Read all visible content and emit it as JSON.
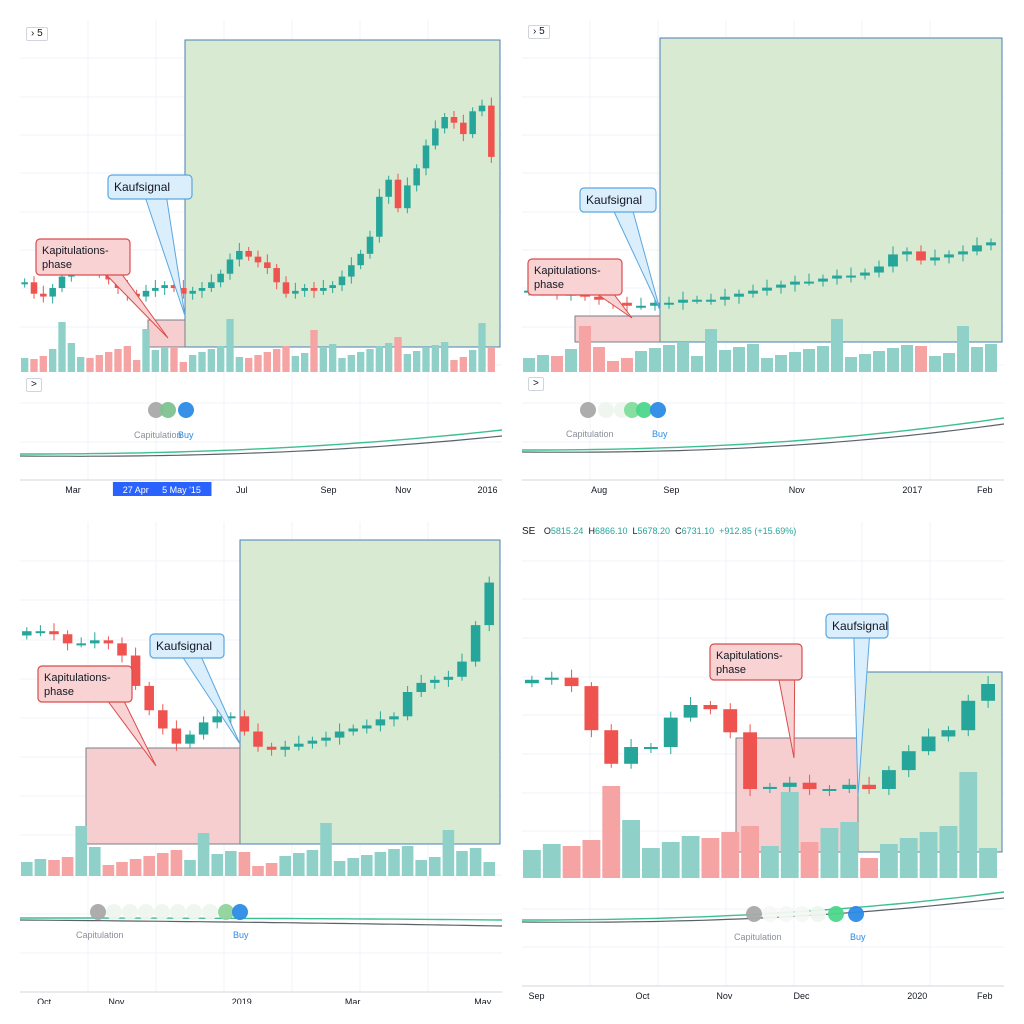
{
  "colors": {
    "up": "#26a69a",
    "down": "#ef5350",
    "vol_up": "#8fd1c8",
    "vol_down": "#f5a3a3",
    "buy_zone": "#d8ebd2",
    "buy_zone_border": "#4a7fb5",
    "cap_zone": "#f4c6c8",
    "cap_zone_border": "#7a7f8a",
    "callout_blue_bg": "#dbeefc",
    "callout_blue_border": "#5aa7e0",
    "callout_red_bg": "#f9d3d3",
    "callout_red_border": "#d94c4c",
    "grid": "#f0f3fa",
    "indicator_line": "#3dbf8f",
    "indicator_line2": "#5a6269",
    "buy_dot": "#2b8be6",
    "cap_dot": "#a9a9a9",
    "mid_dot": "#4cd68a",
    "text_axis": "#131722",
    "text_legend": "#8a8f9b"
  },
  "labels": {
    "kaufsignal": "Kaufsignal",
    "kapitulation_1": "Kapitulations-",
    "kapitulation_2": "phase",
    "capitulation": "Capitulation",
    "buy": "Buy"
  },
  "panels": [
    {
      "id": "tl",
      "badge": "5",
      "collapse_badge": ">",
      "x_ticks": [
        "Mar",
        "27 Apr '15",
        "5 May '15",
        "Jul",
        "Sep",
        "Nov",
        "2016"
      ],
      "x_tick_pos": [
        0.11,
        0.255,
        0.335,
        0.46,
        0.64,
        0.795,
        0.97
      ],
      "highlight_ticks": [
        1,
        2
      ],
      "show_cap_label": true,
      "show_buy_label": true
    },
    {
      "id": "tr",
      "badge": "5",
      "collapse_badge": ">",
      "x_ticks": [
        "Aug",
        "Sep",
        "Nov",
        "2017",
        "Feb"
      ],
      "x_tick_pos": [
        0.16,
        0.31,
        0.57,
        0.81,
        0.96
      ],
      "highlight_ticks": [],
      "show_cap_label": true,
      "show_buy_label": true
    },
    {
      "id": "bl",
      "x_ticks": [
        "Oct",
        "Nov",
        "2019",
        "Mar",
        "May"
      ],
      "x_tick_pos": [
        0.05,
        0.2,
        0.46,
        0.69,
        0.96
      ],
      "highlight_ticks": [],
      "show_cap_label": true,
      "show_buy_label": true
    },
    {
      "id": "br",
      "ohlc": {
        "symbol": "SE",
        "o_label": "O",
        "o": "5815.24",
        "h_label": "H",
        "h": "6866.10",
        "l_label": "L",
        "l": "5678.20",
        "c_label": "C",
        "c": "6731.10",
        "change": "+912.85 (+15.69%)"
      },
      "x_ticks": [
        "Sep",
        "Oct",
        "Nov",
        "Dec",
        "2020",
        "Feb"
      ],
      "x_tick_pos": [
        0.03,
        0.25,
        0.42,
        0.58,
        0.82,
        0.96
      ],
      "highlight_ticks": [],
      "show_cap_label": true,
      "show_buy_label": true
    }
  ],
  "chart_data": [
    {
      "type": "candlestick",
      "panel": "tl",
      "x_labels": [
        "Mar",
        "27 Apr '15",
        "5 May '15",
        "Jul",
        "Sep",
        "Nov",
        "2016"
      ],
      "series": [
        {
          "name": "price",
          "values": [
            0.22,
            0.18,
            0.17,
            0.2,
            0.24,
            0.27,
            0.3,
            0.28,
            0.25,
            0.23,
            0.2,
            0.18,
            0.17,
            0.19,
            0.2,
            0.21,
            0.2,
            0.18,
            0.19,
            0.2,
            0.22,
            0.25,
            0.3,
            0.33,
            0.31,
            0.29,
            0.27,
            0.22,
            0.18,
            0.19,
            0.2,
            0.19,
            0.2,
            0.21,
            0.24,
            0.28,
            0.32,
            0.38,
            0.52,
            0.58,
            0.48,
            0.56,
            0.62,
            0.7,
            0.76,
            0.8,
            0.78,
            0.74,
            0.82,
            0.84,
            0.66
          ]
        }
      ],
      "annotations": [
        "Kapitulations-phase",
        "Kaufsignal"
      ],
      "indicator_points": [
        "Capitulation",
        "Buy"
      ]
    },
    {
      "type": "candlestick",
      "panel": "tr",
      "x_labels": [
        "Aug",
        "Sep",
        "Nov",
        "2017",
        "Feb"
      ],
      "series": [
        {
          "name": "price",
          "values": [
            0.17,
            0.17,
            0.16,
            0.16,
            0.15,
            0.14,
            0.13,
            0.12,
            0.12,
            0.13,
            0.13,
            0.14,
            0.14,
            0.14,
            0.15,
            0.16,
            0.17,
            0.18,
            0.19,
            0.2,
            0.2,
            0.21,
            0.22,
            0.22,
            0.23,
            0.25,
            0.29,
            0.3,
            0.27,
            0.28,
            0.29,
            0.3,
            0.32,
            0.33
          ]
        }
      ],
      "annotations": [
        "Kapitulations-phase",
        "Kaufsignal"
      ],
      "indicator_points": [
        "Capitulation",
        "Buy"
      ]
    },
    {
      "type": "candlestick",
      "panel": "bl",
      "x_labels": [
        "Oct",
        "Nov",
        "2019",
        "Mar",
        "May"
      ],
      "series": [
        {
          "name": "price",
          "values": [
            0.7,
            0.7,
            0.69,
            0.66,
            0.66,
            0.67,
            0.66,
            0.62,
            0.52,
            0.44,
            0.38,
            0.33,
            0.36,
            0.4,
            0.42,
            0.42,
            0.37,
            0.32,
            0.31,
            0.32,
            0.33,
            0.34,
            0.35,
            0.37,
            0.38,
            0.39,
            0.41,
            0.42,
            0.5,
            0.53,
            0.54,
            0.55,
            0.6,
            0.72,
            0.86
          ]
        }
      ],
      "annotations": [
        "Kapitulations-phase",
        "Kaufsignal"
      ],
      "indicator_points": [
        "Capitulation",
        "Buy"
      ]
    },
    {
      "type": "candlestick",
      "panel": "br",
      "x_labels": [
        "Sep",
        "Oct",
        "Nov",
        "Dec",
        "2020",
        "Feb"
      ],
      "series": [
        {
          "name": "price",
          "values": [
            0.82,
            0.83,
            0.79,
            0.58,
            0.42,
            0.5,
            0.5,
            0.64,
            0.7,
            0.68,
            0.57,
            0.3,
            0.31,
            0.33,
            0.3,
            0.3,
            0.32,
            0.3,
            0.39,
            0.48,
            0.55,
            0.58,
            0.72,
            0.8
          ]
        }
      ],
      "ohlc": {
        "O": 5815.24,
        "H": 6866.1,
        "L": 5678.2,
        "C": 6731.1,
        "change": 912.85,
        "change_pct": 15.69
      },
      "annotations": [
        "Kapitulations-phase",
        "Kaufsignal"
      ],
      "indicator_points": [
        "Capitulation",
        "Buy"
      ]
    }
  ]
}
